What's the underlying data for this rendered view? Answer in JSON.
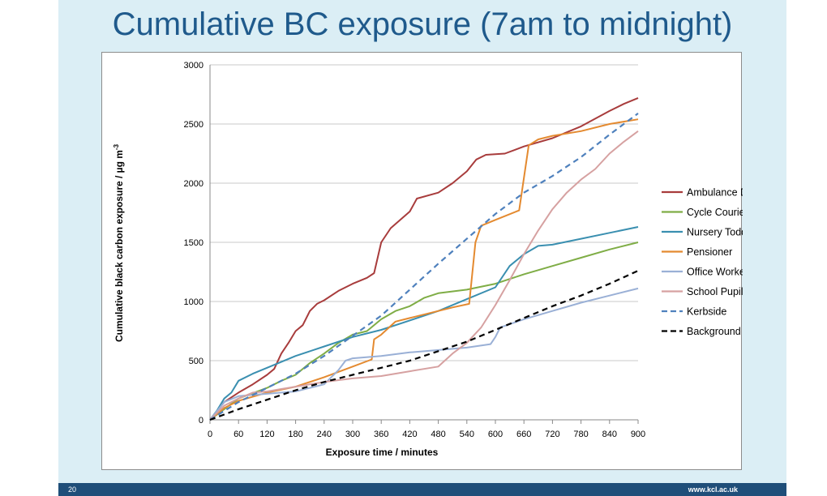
{
  "slide": {
    "title": "Cumulative BC exposure (7am to midnight)",
    "page_number": "20",
    "footer_url": "www.kcl.ac.uk"
  },
  "colors": {
    "slide_background": "#dbeef5",
    "title": "#1f5a8c",
    "footer": "#1f4e79"
  },
  "chart_data": {
    "type": "line",
    "xlabel": "Exposure time / minutes",
    "ylabel": "Cumulative black carbon exposure / µg m",
    "ylabel_superscript": "-3",
    "xlim": [
      0,
      900
    ],
    "ylim": [
      0,
      3000
    ],
    "xticks": [
      0,
      60,
      120,
      180,
      240,
      300,
      360,
      420,
      480,
      540,
      600,
      660,
      720,
      780,
      840,
      900
    ],
    "yticks": [
      0,
      500,
      1000,
      1500,
      2000,
      2500,
      3000
    ],
    "grid": "horizontal",
    "legend_position": "right",
    "series": [
      {
        "name": "Ambulance Driver",
        "color": "#a83c3c",
        "dash": "solid",
        "points": [
          [
            0,
            0
          ],
          [
            30,
            150
          ],
          [
            60,
            230
          ],
          [
            90,
            300
          ],
          [
            120,
            380
          ],
          [
            135,
            430
          ],
          [
            150,
            560
          ],
          [
            165,
            650
          ],
          [
            180,
            750
          ],
          [
            195,
            800
          ],
          [
            210,
            920
          ],
          [
            225,
            980
          ],
          [
            240,
            1010
          ],
          [
            270,
            1090
          ],
          [
            300,
            1150
          ],
          [
            330,
            1200
          ],
          [
            345,
            1240
          ],
          [
            360,
            1500
          ],
          [
            380,
            1620
          ],
          [
            420,
            1760
          ],
          [
            435,
            1870
          ],
          [
            480,
            1920
          ],
          [
            510,
            2000
          ],
          [
            540,
            2100
          ],
          [
            560,
            2200
          ],
          [
            580,
            2240
          ],
          [
            620,
            2250
          ],
          [
            660,
            2310
          ],
          [
            720,
            2380
          ],
          [
            780,
            2480
          ],
          [
            840,
            2610
          ],
          [
            870,
            2670
          ],
          [
            900,
            2720
          ]
        ]
      },
      {
        "name": "Cycle Courier",
        "color": "#7fad46",
        "dash": "solid",
        "points": [
          [
            0,
            0
          ],
          [
            60,
            180
          ],
          [
            120,
            270
          ],
          [
            150,
            330
          ],
          [
            180,
            380
          ],
          [
            210,
            480
          ],
          [
            240,
            560
          ],
          [
            270,
            650
          ],
          [
            300,
            720
          ],
          [
            330,
            750
          ],
          [
            360,
            850
          ],
          [
            390,
            920
          ],
          [
            420,
            960
          ],
          [
            450,
            1030
          ],
          [
            480,
            1070
          ],
          [
            540,
            1100
          ],
          [
            600,
            1150
          ],
          [
            660,
            1230
          ],
          [
            720,
            1300
          ],
          [
            780,
            1370
          ],
          [
            840,
            1440
          ],
          [
            900,
            1500
          ]
        ]
      },
      {
        "name": "Nursery Toddler",
        "color": "#3a8fb0",
        "dash": "solid",
        "points": [
          [
            0,
            0
          ],
          [
            15,
            80
          ],
          [
            30,
            180
          ],
          [
            45,
            230
          ],
          [
            60,
            330
          ],
          [
            90,
            390
          ],
          [
            120,
            440
          ],
          [
            180,
            540
          ],
          [
            240,
            620
          ],
          [
            300,
            700
          ],
          [
            360,
            760
          ],
          [
            420,
            840
          ],
          [
            480,
            920
          ],
          [
            540,
            1020
          ],
          [
            600,
            1120
          ],
          [
            630,
            1300
          ],
          [
            660,
            1400
          ],
          [
            690,
            1470
          ],
          [
            720,
            1480
          ],
          [
            780,
            1530
          ],
          [
            840,
            1580
          ],
          [
            900,
            1630
          ]
        ]
      },
      {
        "name": "Pensioner",
        "color": "#e48a30",
        "dash": "solid",
        "points": [
          [
            0,
            0
          ],
          [
            30,
            100
          ],
          [
            60,
            160
          ],
          [
            120,
            230
          ],
          [
            180,
            280
          ],
          [
            240,
            360
          ],
          [
            300,
            450
          ],
          [
            340,
            510
          ],
          [
            345,
            680
          ],
          [
            360,
            720
          ],
          [
            390,
            830
          ],
          [
            420,
            860
          ],
          [
            480,
            920
          ],
          [
            510,
            950
          ],
          [
            545,
            980
          ],
          [
            558,
            1500
          ],
          [
            570,
            1640
          ],
          [
            600,
            1690
          ],
          [
            650,
            1770
          ],
          [
            670,
            2320
          ],
          [
            690,
            2370
          ],
          [
            720,
            2400
          ],
          [
            780,
            2440
          ],
          [
            840,
            2500
          ],
          [
            900,
            2540
          ]
        ]
      },
      {
        "name": "Office Worker",
        "color": "#9ab0d6",
        "dash": "solid",
        "points": [
          [
            0,
            0
          ],
          [
            30,
            150
          ],
          [
            60,
            200
          ],
          [
            90,
            210
          ],
          [
            120,
            220
          ],
          [
            150,
            230
          ],
          [
            180,
            240
          ],
          [
            210,
            270
          ],
          [
            240,
            300
          ],
          [
            270,
            420
          ],
          [
            285,
            500
          ],
          [
            300,
            520
          ],
          [
            360,
            540
          ],
          [
            420,
            570
          ],
          [
            480,
            590
          ],
          [
            540,
            610
          ],
          [
            590,
            640
          ],
          [
            600,
            700
          ],
          [
            610,
            780
          ],
          [
            660,
            850
          ],
          [
            720,
            920
          ],
          [
            780,
            990
          ],
          [
            840,
            1050
          ],
          [
            900,
            1110
          ]
        ]
      },
      {
        "name": "School Pupil",
        "color": "#d6a1a1",
        "dash": "solid",
        "points": [
          [
            0,
            0
          ],
          [
            30,
            120
          ],
          [
            60,
            180
          ],
          [
            90,
            230
          ],
          [
            120,
            240
          ],
          [
            150,
            260
          ],
          [
            180,
            280
          ],
          [
            240,
            320
          ],
          [
            300,
            350
          ],
          [
            360,
            370
          ],
          [
            420,
            410
          ],
          [
            480,
            450
          ],
          [
            510,
            560
          ],
          [
            540,
            650
          ],
          [
            570,
            780
          ],
          [
            600,
            970
          ],
          [
            630,
            1180
          ],
          [
            660,
            1400
          ],
          [
            690,
            1600
          ],
          [
            720,
            1780
          ],
          [
            750,
            1920
          ],
          [
            780,
            2030
          ],
          [
            810,
            2120
          ],
          [
            840,
            2250
          ],
          [
            870,
            2350
          ],
          [
            900,
            2440
          ]
        ]
      },
      {
        "name": "Kerbside",
        "color": "#4f81bd",
        "dash": "dashed",
        "points": [
          [
            0,
            0
          ],
          [
            60,
            150
          ],
          [
            120,
            270
          ],
          [
            180,
            390
          ],
          [
            240,
            540
          ],
          [
            300,
            710
          ],
          [
            360,
            880
          ],
          [
            420,
            1100
          ],
          [
            480,
            1320
          ],
          [
            540,
            1530
          ],
          [
            600,
            1740
          ],
          [
            660,
            1920
          ],
          [
            720,
            2060
          ],
          [
            780,
            2220
          ],
          [
            840,
            2410
          ],
          [
            900,
            2590
          ]
        ]
      },
      {
        "name": "Background",
        "color": "#000000",
        "dash": "dashed",
        "points": [
          [
            0,
            0
          ],
          [
            60,
            90
          ],
          [
            120,
            170
          ],
          [
            180,
            250
          ],
          [
            240,
            320
          ],
          [
            300,
            380
          ],
          [
            360,
            440
          ],
          [
            420,
            500
          ],
          [
            480,
            580
          ],
          [
            540,
            660
          ],
          [
            600,
            760
          ],
          [
            660,
            860
          ],
          [
            720,
            960
          ],
          [
            780,
            1050
          ],
          [
            840,
            1150
          ],
          [
            900,
            1260
          ]
        ]
      }
    ]
  }
}
